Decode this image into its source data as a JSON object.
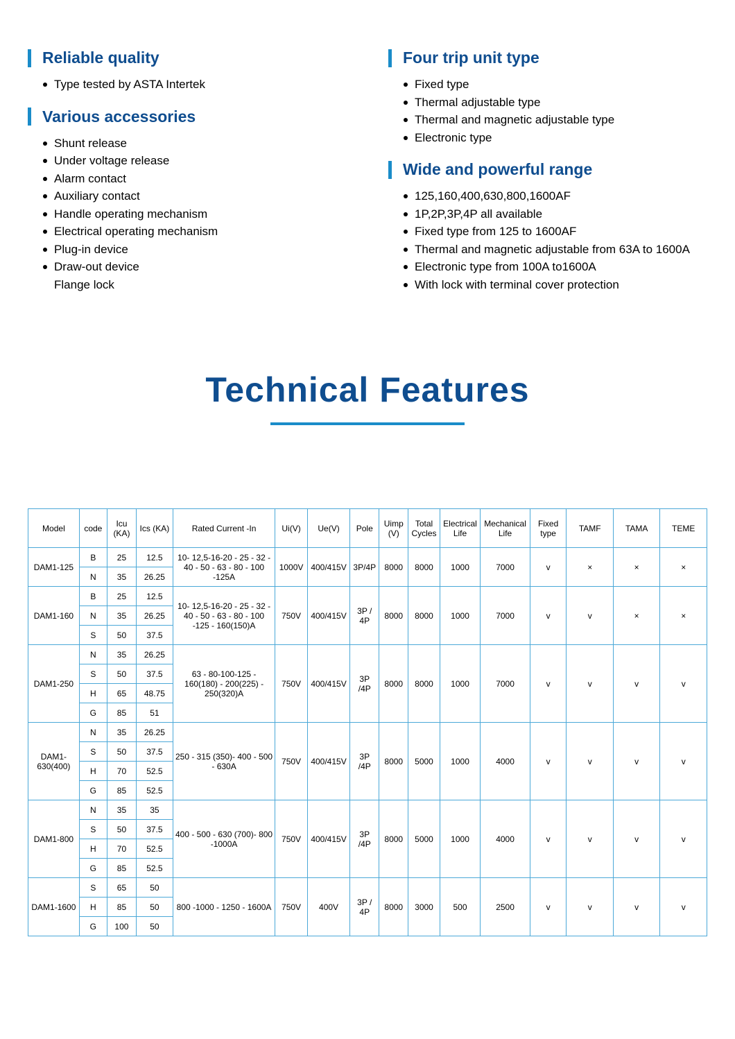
{
  "features": {
    "left": [
      {
        "heading": "Reliable quality",
        "items": [
          {
            "text": "Type tested by ASTA Intertek",
            "bulleted": true
          }
        ]
      },
      {
        "heading": "Various accessories",
        "items": [
          {
            "text": "Shunt release",
            "bulleted": true
          },
          {
            "text": "Under voltage release",
            "bulleted": true
          },
          {
            "text": "Alarm contact",
            "bulleted": true
          },
          {
            "text": "Auxiliary contact",
            "bulleted": true
          },
          {
            "text": "Handle operating mechanism",
            "bulleted": true
          },
          {
            "text": "Electrical operating mechanism",
            "bulleted": true
          },
          {
            "text": "Plug-in device",
            "bulleted": true
          },
          {
            "text": "Draw-out device",
            "bulleted": true
          },
          {
            "text": "Flange lock",
            "bulleted": false
          }
        ]
      }
    ],
    "right": [
      {
        "heading": "Four trip unit type",
        "items": [
          {
            "text": "Fixed type",
            "bulleted": true
          },
          {
            "text": "Thermal adjustable type",
            "bulleted": true
          },
          {
            "text": "Thermal and magnetic adjustable type",
            "bulleted": true
          },
          {
            "text": "Electronic type",
            "bulleted": true
          }
        ]
      },
      {
        "heading": "Wide and powerful range",
        "items": [
          {
            "text": "125,160,400,630,800,1600AF",
            "bulleted": true
          },
          {
            "text": "1P,2P,3P,4P all available",
            "bulleted": true
          },
          {
            "text": "Fixed type from 125 to 1600AF",
            "bulleted": true
          },
          {
            "text": "Thermal and magnetic adjustable from 63A to 1600A",
            "bulleted": true
          },
          {
            "text": "Electronic type  from 100A to1600A",
            "bulleted": true
          },
          {
            "text": "With lock with terminal cover protection",
            "bulleted": true
          }
        ]
      }
    ]
  },
  "main_title": "Technical Features",
  "table": {
    "columns": [
      "Model",
      "code",
      "Icu (KA)",
      "Ics (KA)",
      "Rated Current -In",
      "Ui(V)",
      "Ue(V)",
      "Pole",
      "Uimp (V)",
      "Total Cycles",
      "Electrical Life",
      "Mechanical Life",
      "Fixed type",
      "TAMF",
      "TAMA",
      "TEME"
    ],
    "groups": [
      {
        "model": "DAM1-125",
        "rated_current": "10- 12,5-16-20 - 25 - 32 - 40  - 50 - 63 - 80 - 100 -125A",
        "ui": "1000V",
        "ue": "400/415V",
        "pole": "3P/4P",
        "uimp": "8000",
        "total_cycles": "8000",
        "elec_life": "1000",
        "mech_life": "7000",
        "fixed": "v",
        "tamf": "×",
        "tama": "×",
        "teme": "×",
        "rows": [
          {
            "code": "B",
            "icu": "25",
            "ics": "12.5"
          },
          {
            "code": "N",
            "icu": "35",
            "ics": "26.25"
          }
        ]
      },
      {
        "model": "DAM1-160",
        "rated_current": "10- 12,5-16-20 - 25 - 32 - 40  - 50 - 63 - 80 - 100 -125 - 160(150)A",
        "ui": "750V",
        "ue": "400/415V",
        "pole": "3P / 4P",
        "uimp": "8000",
        "total_cycles": "8000",
        "elec_life": "1000",
        "mech_life": "7000",
        "fixed": "v",
        "tamf": "v",
        "tama": "×",
        "teme": "×",
        "rows": [
          {
            "code": "B",
            "icu": "25",
            "ics": "12.5"
          },
          {
            "code": "N",
            "icu": "35",
            "ics": "26.25"
          },
          {
            "code": "S",
            "icu": "50",
            "ics": "37.5"
          }
        ]
      },
      {
        "model": "DAM1-250",
        "rated_current": "63 - 80-100-125 - 160(180) -  200(225) - 250(320)A",
        "ui": "750V",
        "ue": "400/415V",
        "pole": "3P /4P",
        "uimp": "8000",
        "total_cycles": "8000",
        "elec_life": "1000",
        "mech_life": "7000",
        "fixed": "v",
        "tamf": "v",
        "tama": "v",
        "teme": "v",
        "rows": [
          {
            "code": "N",
            "icu": "35",
            "ics": "26.25"
          },
          {
            "code": "S",
            "icu": "50",
            "ics": "37.5"
          },
          {
            "code": "H",
            "icu": "65",
            "ics": "48.75"
          },
          {
            "code": "G",
            "icu": "85",
            "ics": "51"
          }
        ]
      },
      {
        "model": "DAM1-630(400)",
        "rated_current": "250 - 315 (350)- 400 - 500  - 630A",
        "ui": "750V",
        "ue": "400/415V",
        "pole": "3P /4P",
        "uimp": "8000",
        "total_cycles": "5000",
        "elec_life": "1000",
        "mech_life": "4000",
        "fixed": "v",
        "tamf": "v",
        "tama": "v",
        "teme": "v",
        "rows": [
          {
            "code": "N",
            "icu": "35",
            "ics": "26.25"
          },
          {
            "code": "S",
            "icu": "50",
            "ics": "37.5"
          },
          {
            "code": "H",
            "icu": "70",
            "ics": "52.5"
          },
          {
            "code": "G",
            "icu": "85",
            "ics": "52.5"
          }
        ]
      },
      {
        "model": "DAM1-800",
        "rated_current": "400 - 500 - 630 (700)- 800 -1000A",
        "ui": "750V",
        "ue": "400/415V",
        "pole": "3P /4P",
        "uimp": "8000",
        "total_cycles": "5000",
        "elec_life": "1000",
        "mech_life": "4000",
        "fixed": "v",
        "tamf": "v",
        "tama": "v",
        "teme": "v",
        "rows": [
          {
            "code": "N",
            "icu": "35",
            "ics": "35"
          },
          {
            "code": "S",
            "icu": "50",
            "ics": "37.5"
          },
          {
            "code": "H",
            "icu": "70",
            "ics": "52.5"
          },
          {
            "code": "G",
            "icu": "85",
            "ics": "52.5"
          }
        ]
      },
      {
        "model": "DAM1-1600",
        "rated_current": "800 -1000 - 1250 - 1600A",
        "ui": "750V",
        "ue": "400V",
        "pole": "3P / 4P",
        "uimp": "8000",
        "total_cycles": "3000",
        "elec_life": "500",
        "mech_life": "2500",
        "fixed": "v",
        "tamf": "v",
        "tama": "v",
        "teme": "v",
        "rows": [
          {
            "code": "S",
            "icu": "65",
            "ics": "50"
          },
          {
            "code": "H",
            "icu": "85",
            "ics": "50"
          },
          {
            "code": "G",
            "icu": "100",
            "ics": "50"
          }
        ]
      }
    ]
  },
  "colors": {
    "heading_text": "#0f4d8f",
    "accent_bar": "#1a8cc9",
    "table_border": "#4aa8d8",
    "body_text": "#000000",
    "background": "#ffffff"
  }
}
